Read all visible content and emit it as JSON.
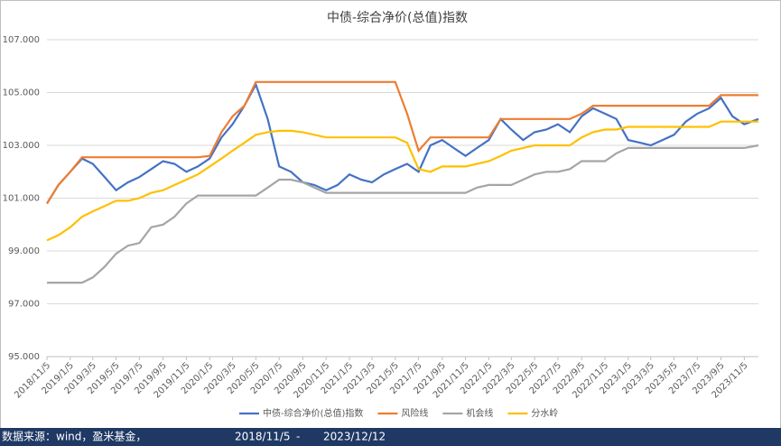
{
  "chart_data": {
    "type": "line",
    "title": "中债-综合净价(总值)指数",
    "x": [
      "2018/11/5",
      "2018/12/5",
      "2019/1/5",
      "2019/2/5",
      "2019/3/5",
      "2019/4/5",
      "2019/5/5",
      "2019/6/5",
      "2019/7/5",
      "2019/8/5",
      "2019/9/5",
      "2019/10/5",
      "2019/11/5",
      "2019/12/5",
      "2020/1/5",
      "2020/2/5",
      "2020/3/5",
      "2020/4/5",
      "2020/5/5",
      "2020/6/5",
      "2020/7/5",
      "2020/8/5",
      "2020/9/5",
      "2020/10/5",
      "2020/11/5",
      "2020/12/5",
      "2021/1/5",
      "2021/2/5",
      "2021/3/5",
      "2021/4/5",
      "2021/5/5",
      "2021/6/5",
      "2021/7/5",
      "2021/8/5",
      "2021/9/5",
      "2021/10/5",
      "2021/11/5",
      "2021/12/5",
      "2022/1/5",
      "2022/2/5",
      "2022/3/5",
      "2022/4/5",
      "2022/5/5",
      "2022/6/5",
      "2022/7/5",
      "2022/8/5",
      "2022/9/5",
      "2022/10/5",
      "2022/11/5",
      "2022/12/5",
      "2023/1/5",
      "2023/2/5",
      "2023/3/5",
      "2023/4/5",
      "2023/5/5",
      "2023/6/5",
      "2023/7/5",
      "2023/8/5",
      "2023/9/5",
      "2023/10/5",
      "2023/11/5",
      "2023/12/12"
    ],
    "xticks": [
      "2018/11/5",
      "2019/1/5",
      "2019/3/5",
      "2019/5/5",
      "2019/7/5",
      "2019/9/5",
      "2019/11/5",
      "2020/1/5",
      "2020/3/5",
      "2020/5/5",
      "2020/7/5",
      "2020/9/5",
      "2020/11/5",
      "2021/1/5",
      "2021/3/5",
      "2021/5/5",
      "2021/7/5",
      "2021/9/5",
      "2021/11/5",
      "2022/1/5",
      "2022/3/5",
      "2022/5/5",
      "2022/7/5",
      "2022/9/5",
      "2022/11/5",
      "2023/1/5",
      "2023/3/5",
      "2023/5/5",
      "2023/7/5",
      "2023/9/5",
      "2023/11/5"
    ],
    "ylim": [
      95,
      107
    ],
    "yticks": [
      {
        "value": 95,
        "label": "95.000"
      },
      {
        "value": 97,
        "label": "97.000"
      },
      {
        "value": 99,
        "label": "99.000"
      },
      {
        "value": 101,
        "label": "101.000"
      },
      {
        "value": 103,
        "label": "103.000"
      },
      {
        "value": 105,
        "label": "105.000"
      },
      {
        "value": 107,
        "label": "107.000"
      }
    ],
    "grid": true,
    "series": [
      {
        "name": "中债-综合净价(总值)指数",
        "color": "#4472c4",
        "values": [
          100.8,
          101.5,
          102.0,
          102.5,
          102.3,
          101.8,
          101.3,
          101.6,
          101.8,
          102.1,
          102.4,
          102.3,
          102.0,
          102.2,
          102.5,
          103.3,
          103.8,
          104.5,
          105.3,
          104.0,
          102.2,
          102.0,
          101.6,
          101.5,
          101.3,
          101.5,
          101.9,
          101.7,
          101.6,
          101.9,
          102.1,
          102.3,
          102.0,
          103.0,
          103.2,
          102.9,
          102.6,
          102.9,
          103.2,
          104.0,
          103.6,
          103.2,
          103.5,
          103.6,
          103.8,
          103.5,
          104.1,
          104.4,
          104.2,
          104.0,
          103.2,
          103.1,
          103.0,
          103.2,
          103.4,
          103.9,
          104.2,
          104.4,
          104.8,
          104.1,
          103.8,
          104.0
        ]
      },
      {
        "name": "风险线",
        "color": "#ed7d31",
        "values": [
          100.8,
          101.5,
          102.0,
          102.55,
          102.55,
          102.55,
          102.55,
          102.55,
          102.55,
          102.55,
          102.55,
          102.55,
          102.55,
          102.55,
          102.6,
          103.5,
          104.1,
          104.5,
          105.4,
          105.4,
          105.4,
          105.4,
          105.4,
          105.4,
          105.4,
          105.4,
          105.4,
          105.4,
          105.4,
          105.4,
          105.4,
          104.2,
          102.8,
          103.3,
          103.3,
          103.3,
          103.3,
          103.3,
          103.3,
          104.0,
          104.0,
          104.0,
          104.0,
          104.0,
          104.0,
          104.0,
          104.2,
          104.5,
          104.5,
          104.5,
          104.5,
          104.5,
          104.5,
          104.5,
          104.5,
          104.5,
          104.5,
          104.5,
          104.9,
          104.9,
          104.9,
          104.9
        ]
      },
      {
        "name": "机会线",
        "color": "#a5a5a5",
        "values": [
          97.8,
          97.8,
          97.8,
          97.8,
          98.0,
          98.4,
          98.9,
          99.2,
          99.3,
          99.9,
          100.0,
          100.3,
          100.8,
          101.1,
          101.1,
          101.1,
          101.1,
          101.1,
          101.1,
          101.4,
          101.7,
          101.7,
          101.6,
          101.4,
          101.2,
          101.2,
          101.2,
          101.2,
          101.2,
          101.2,
          101.2,
          101.2,
          101.2,
          101.2,
          101.2,
          101.2,
          101.2,
          101.4,
          101.5,
          101.5,
          101.5,
          101.7,
          101.9,
          102.0,
          102.0,
          102.1,
          102.4,
          102.4,
          102.4,
          102.7,
          102.9,
          102.9,
          102.9,
          102.9,
          102.9,
          102.9,
          102.9,
          102.9,
          102.9,
          102.9,
          102.9,
          103.0
        ]
      },
      {
        "name": "分水岭",
        "color": "#ffc000",
        "values": [
          99.4,
          99.6,
          99.9,
          100.3,
          100.5,
          100.7,
          100.9,
          100.9,
          101.0,
          101.2,
          101.3,
          101.5,
          101.7,
          101.9,
          102.2,
          102.5,
          102.8,
          103.1,
          103.4,
          103.5,
          103.55,
          103.55,
          103.5,
          103.4,
          103.3,
          103.3,
          103.3,
          103.3,
          103.3,
          103.3,
          103.3,
          103.1,
          102.1,
          102.0,
          102.2,
          102.2,
          102.2,
          102.3,
          102.4,
          102.6,
          102.8,
          102.9,
          103.0,
          103.0,
          103.0,
          103.0,
          103.3,
          103.5,
          103.6,
          103.6,
          103.7,
          103.7,
          103.7,
          103.7,
          103.7,
          103.7,
          103.7,
          103.7,
          103.9,
          103.9,
          103.9,
          103.9
        ]
      }
    ]
  },
  "footer": {
    "source": "数据来源：wind，盈米基金，",
    "start": "2018/11/5",
    "sep": "-",
    "end": "2023/12/12"
  }
}
